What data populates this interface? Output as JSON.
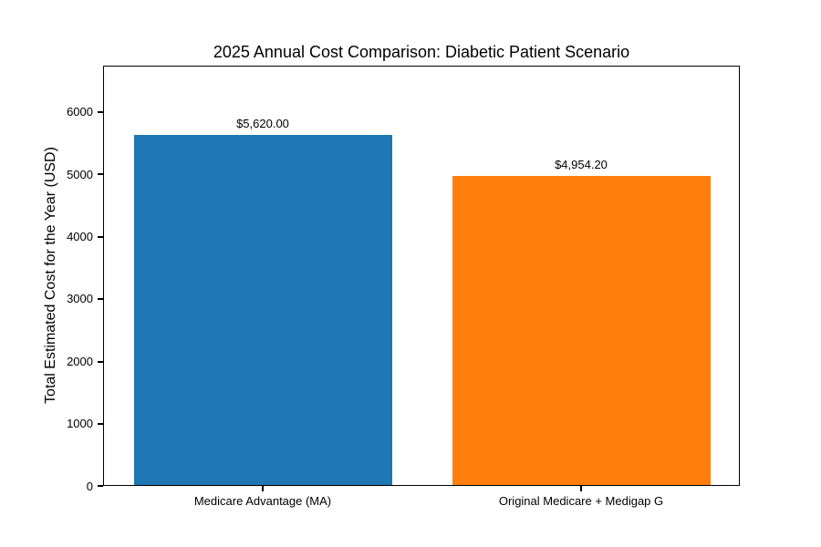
{
  "chart_data": {
    "type": "bar",
    "title": "2025 Annual Cost Comparison: Diabetic Patient Scenario",
    "xlabel": "",
    "ylabel": "Total Estimated Cost for the Year (USD)",
    "categories": [
      "Medicare Advantage (MA)",
      "Original Medicare + Medigap G"
    ],
    "values": [
      5620.0,
      4954.2
    ],
    "bar_labels": [
      "$5,620.00",
      "$4,954.20"
    ],
    "bar_colors": [
      "#1f77b4",
      "#ff7f0e"
    ],
    "yticks": [
      0,
      1000,
      2000,
      3000,
      4000,
      5000,
      6000
    ],
    "ylim": [
      0,
      6744
    ],
    "grid": false,
    "legend_position": "none",
    "background_color": "#ffffff",
    "text_color": "#000000"
  }
}
